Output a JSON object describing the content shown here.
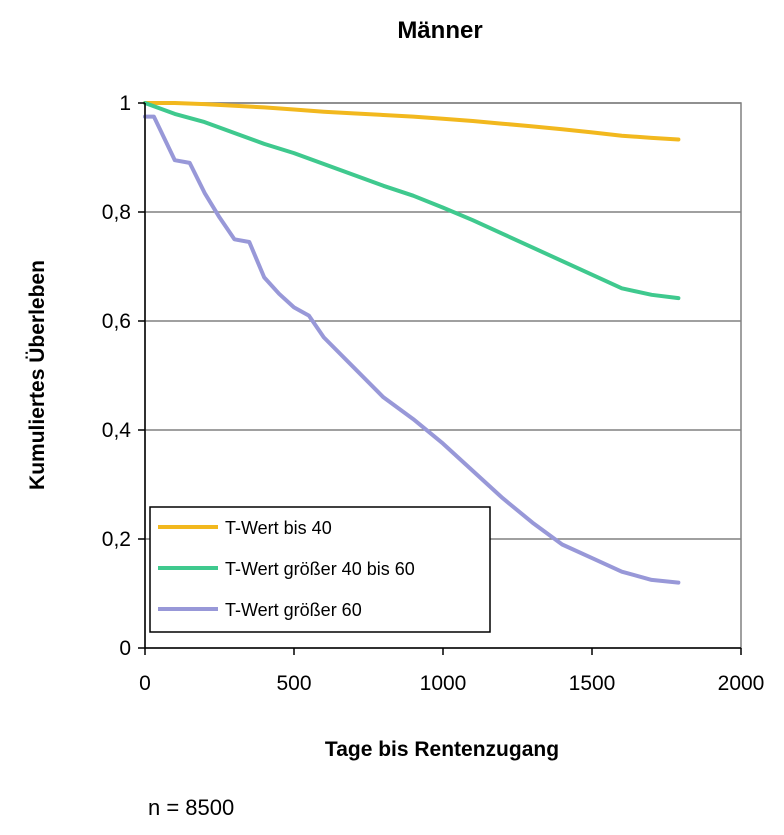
{
  "chart_data": {
    "type": "line",
    "title": "Männer",
    "xlabel": "Tage bis Rentenzugang",
    "ylabel": "Kumuliertes Überleben",
    "xlim": [
      0,
      2000
    ],
    "ylim": [
      0,
      1
    ],
    "xticks": [
      0,
      500,
      1000,
      1500,
      2000
    ],
    "xtick_labels": [
      "0",
      "500",
      "1000",
      "1500",
      "2000"
    ],
    "yticks": [
      0,
      0.2,
      0.4,
      0.6,
      0.8,
      1
    ],
    "ytick_labels": [
      "0",
      "0,2",
      "0,4",
      "0,6",
      "0,8",
      "1"
    ],
    "grid": true,
    "legend_position": "bottom-left",
    "series": [
      {
        "name": "T-Wert bis 40",
        "color": "#f2b81e",
        "x": [
          0,
          100,
          200,
          300,
          400,
          500,
          600,
          700,
          800,
          900,
          1000,
          1100,
          1200,
          1300,
          1400,
          1500,
          1600,
          1700,
          1790
        ],
        "y": [
          1.0,
          1.0,
          0.998,
          0.995,
          0.992,
          0.988,
          0.984,
          0.981,
          0.978,
          0.975,
          0.971,
          0.967,
          0.962,
          0.957,
          0.952,
          0.946,
          0.94,
          0.936,
          0.933
        ]
      },
      {
        "name": "T-Wert größer 40 bis 60",
        "color": "#3fc98e",
        "x": [
          0,
          100,
          200,
          300,
          400,
          500,
          600,
          700,
          800,
          900,
          1000,
          1100,
          1200,
          1300,
          1400,
          1500,
          1600,
          1700,
          1790
        ],
        "y": [
          1.0,
          0.98,
          0.965,
          0.945,
          0.925,
          0.908,
          0.888,
          0.868,
          0.848,
          0.83,
          0.808,
          0.785,
          0.76,
          0.735,
          0.71,
          0.685,
          0.66,
          0.648,
          0.642
        ]
      },
      {
        "name": "T-Wert größer 60",
        "color": "#9898d8",
        "x": [
          0,
          30,
          100,
          150,
          200,
          250,
          300,
          350,
          400,
          450,
          500,
          550,
          600,
          700,
          800,
          900,
          1000,
          1100,
          1200,
          1300,
          1400,
          1500,
          1600,
          1700,
          1790
        ],
        "y": [
          0.975,
          0.975,
          0.895,
          0.89,
          0.835,
          0.79,
          0.75,
          0.745,
          0.68,
          0.65,
          0.625,
          0.61,
          0.57,
          0.515,
          0.46,
          0.42,
          0.375,
          0.325,
          0.275,
          0.23,
          0.19,
          0.165,
          0.14,
          0.125,
          0.12
        ]
      }
    ]
  },
  "note": "n = 8500"
}
